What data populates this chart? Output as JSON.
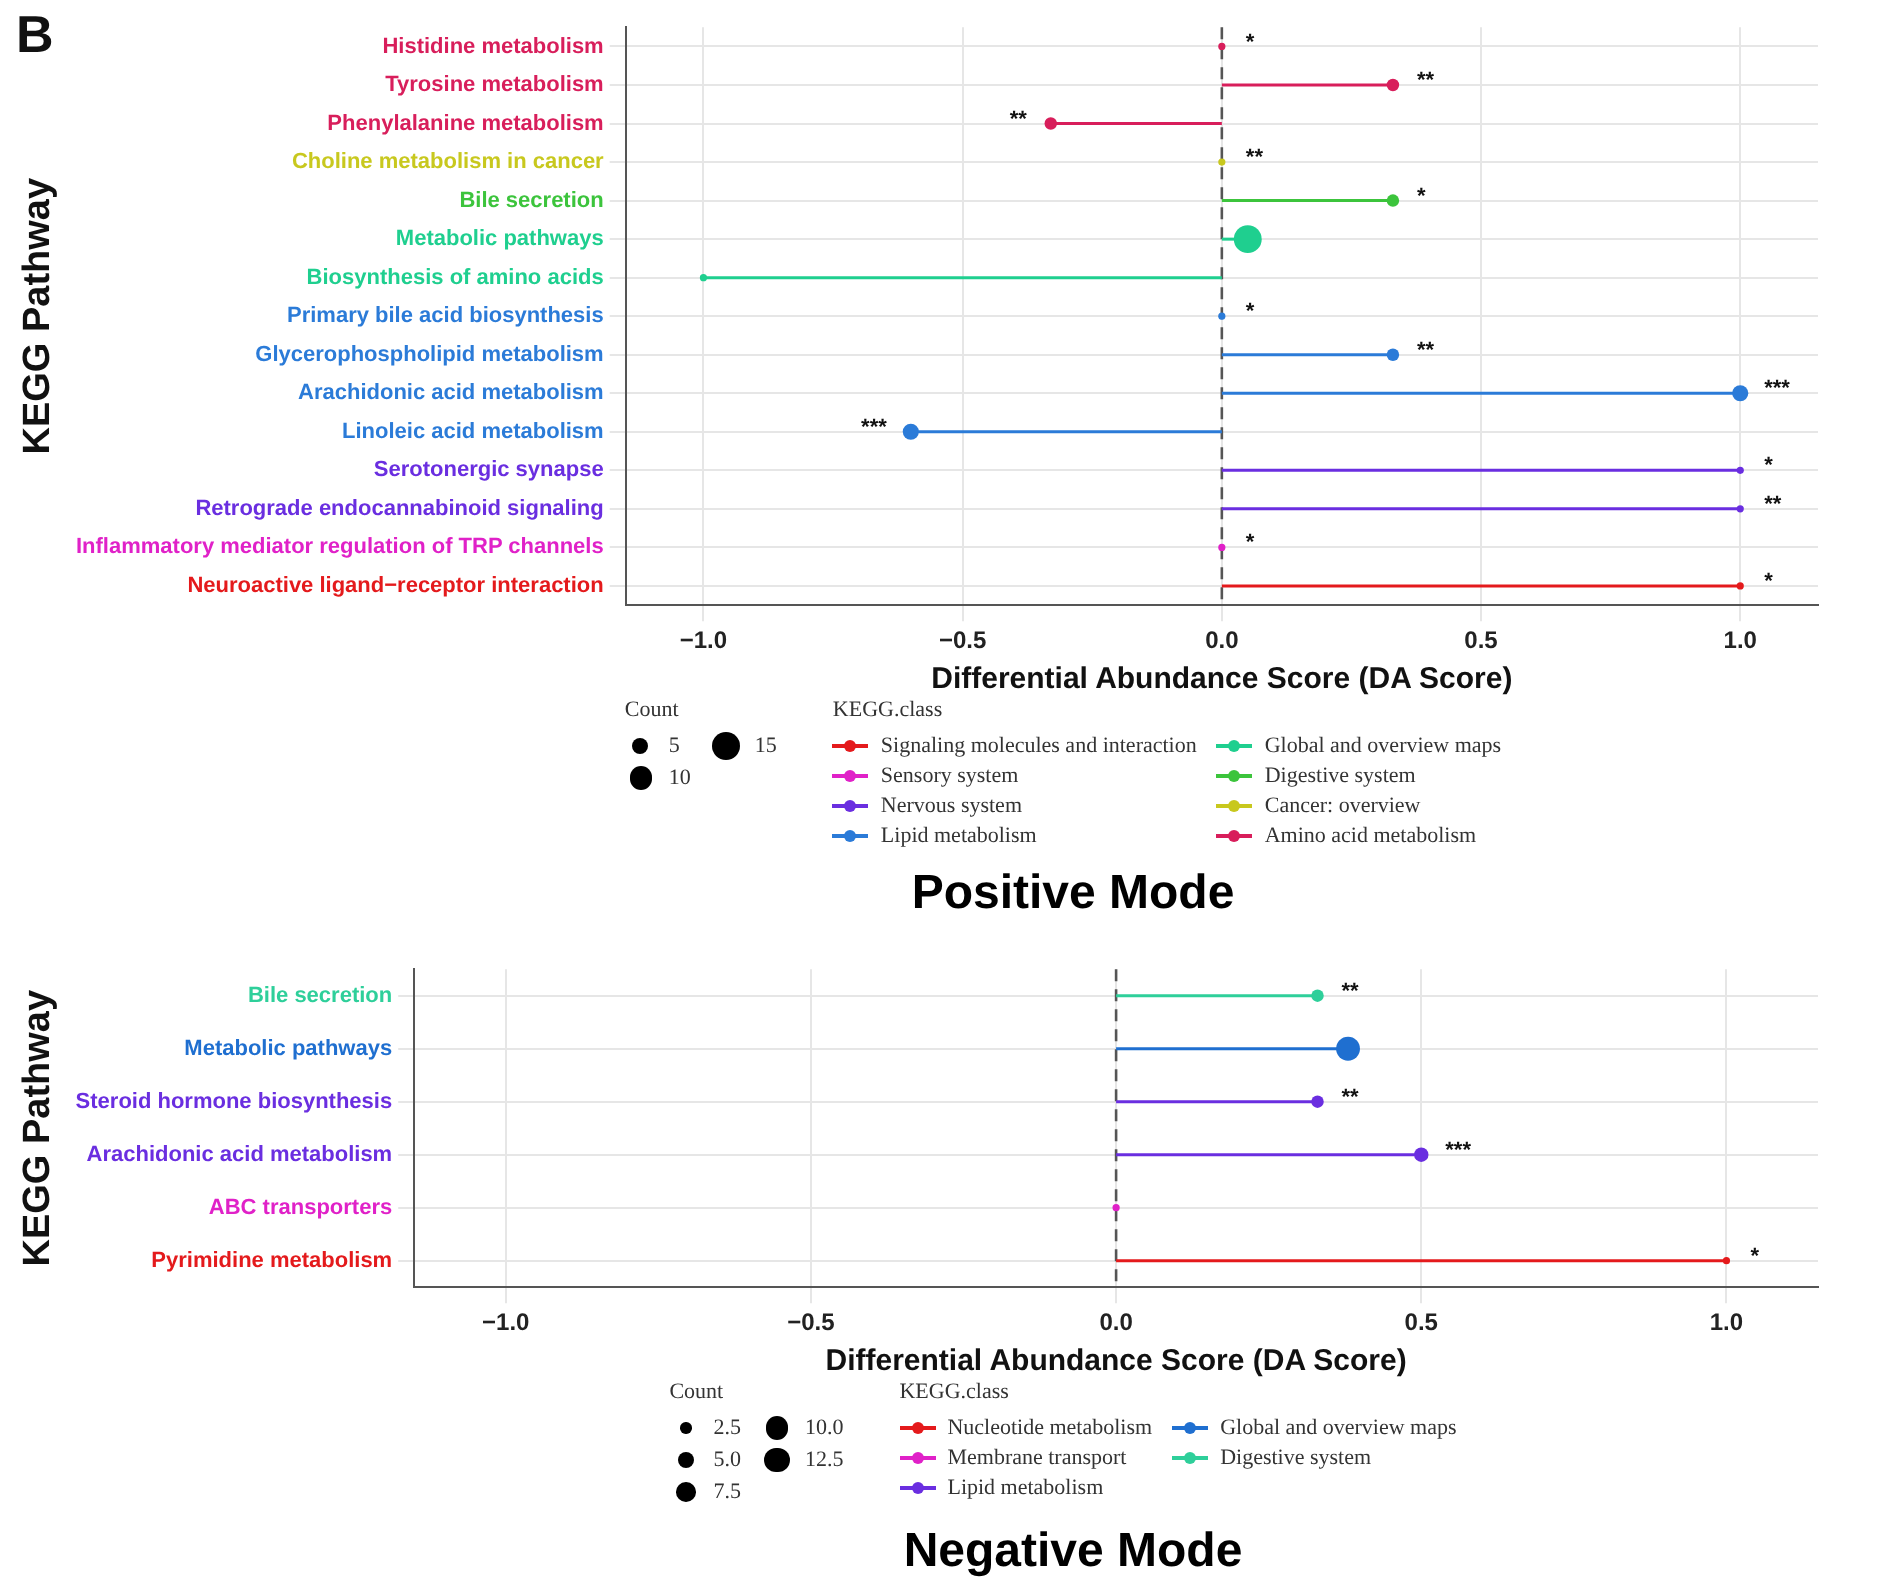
{
  "chart_data": [
    {
      "type": "lollipop",
      "title": "Positive Mode",
      "xlabel": "Differential Abundance Score (DA Score)",
      "ylabel": "KEGG Pathway",
      "legend_title": "KEGG.class",
      "categories": [
        "Histidine metabolism",
        "Tyrosine metabolism",
        "Phenylalanine metabolism",
        "Choline metabolism in cancer",
        "Bile secretion",
        "Metabolic pathways",
        "Biosynthesis of amino acids",
        "Primary bile acid biosynthesis",
        "Glycerophospholipid metabolism",
        "Arachidonic acid metabolism",
        "Linoleic acid metabolism",
        "Serotonergic synapse",
        "Retrograde endocannabinoid signaling",
        "Inflammatory mediator regulation of TRP channels",
        "Neuroactive ligand−receptor interaction"
      ],
      "series": [
        {
          "name": "Signaling molecules and interaction",
          "color": "#e41a1c",
          "values": [
            null,
            null,
            null,
            null,
            null,
            null,
            null,
            null,
            null,
            null,
            null,
            null,
            null,
            null,
            1.0
          ],
          "sizes": [
            null,
            null,
            null,
            null,
            null,
            null,
            null,
            null,
            null,
            null,
            null,
            null,
            null,
            null,
            1
          ]
        },
        {
          "name": "Sensory system",
          "color": "#e021c8",
          "values": [
            null,
            null,
            null,
            null,
            null,
            null,
            null,
            null,
            null,
            null,
            null,
            null,
            null,
            0,
            null
          ],
          "sizes": [
            null,
            null,
            null,
            null,
            null,
            null,
            null,
            null,
            null,
            null,
            null,
            null,
            null,
            1,
            null
          ]
        },
        {
          "name": "Nervous system",
          "color": "#6a2ee0",
          "values": [
            null,
            null,
            null,
            null,
            null,
            null,
            null,
            null,
            null,
            null,
            null,
            1.0,
            1.0,
            null,
            null
          ],
          "sizes": [
            null,
            null,
            null,
            null,
            null,
            null,
            null,
            null,
            null,
            null,
            null,
            1,
            1,
            null,
            null
          ]
        },
        {
          "name": "Lipid metabolism",
          "color": "#2b7bd8",
          "values": [
            null,
            null,
            null,
            null,
            null,
            null,
            null,
            0,
            0.33,
            1.0,
            -0.6,
            null,
            null,
            null,
            null
          ],
          "sizes": [
            null,
            null,
            null,
            null,
            null,
            null,
            null,
            1,
            3,
            5,
            5,
            null,
            null,
            null,
            null
          ]
        },
        {
          "name": "Global and overview maps",
          "color": "#1fcf8f",
          "values": [
            null,
            null,
            null,
            null,
            null,
            0.05,
            -1.0,
            null,
            null,
            null,
            null,
            null,
            null,
            null,
            null
          ],
          "sizes": [
            null,
            null,
            null,
            null,
            null,
            15,
            1,
            null,
            null,
            null,
            null,
            null,
            null,
            null,
            null
          ]
        },
        {
          "name": "Digestive system",
          "color": "#3cc43c",
          "values": [
            null,
            null,
            null,
            null,
            0.33,
            null,
            null,
            null,
            null,
            null,
            null,
            null,
            null,
            null,
            null
          ],
          "sizes": [
            null,
            null,
            null,
            null,
            3,
            null,
            null,
            null,
            null,
            null,
            null,
            null,
            null,
            null,
            null
          ]
        },
        {
          "name": "Cancer: overview",
          "color": "#c8c81e",
          "values": [
            null,
            null,
            null,
            0,
            null,
            null,
            null,
            null,
            null,
            null,
            null,
            null,
            null,
            null,
            null
          ],
          "sizes": [
            null,
            null,
            null,
            1,
            null,
            null,
            null,
            null,
            null,
            null,
            null,
            null,
            null,
            null,
            null
          ]
        },
        {
          "name": "Amino acid metabolism",
          "color": "#d81e5b",
          "values": [
            0,
            0.33,
            -0.33,
            null,
            null,
            null,
            null,
            null,
            null,
            null,
            null,
            null,
            null,
            null,
            null
          ],
          "sizes": [
            1,
            3,
            3,
            null,
            null,
            null,
            null,
            null,
            null,
            null,
            null,
            null,
            null,
            null,
            null
          ]
        }
      ],
      "size_legend": [
        {
          "value": 5,
          "label": "5"
        },
        {
          "value": 10,
          "label": "10"
        },
        {
          "value": 15,
          "label": "15"
        }
      ],
      "orientation": "horizontal",
      "xlim": [
        -1.15,
        1.15
      ],
      "xticks": [
        {
          "value": -1,
          "label": "−1.0"
        },
        {
          "value": -0.5,
          "label": "−0.5"
        },
        {
          "value": 0,
          "label": "0.0"
        },
        {
          "value": 0.5,
          "label": "0.5"
        },
        {
          "value": 1,
          "label": "1.0"
        }
      ],
      "grid": true,
      "legend": "bottom",
      "marker": "circle",
      "ref_lines": [
        {
          "axis": "x",
          "value": 0,
          "color": "#555555",
          "line_style": "dashed"
        }
      ],
      "annotations": [
        "B",
        "Count",
        {
          "text": "*",
          "x": 0,
          "y": "Histidine metabolism"
        },
        {
          "text": "**",
          "x": 0.33,
          "y": "Tyrosine metabolism"
        },
        {
          "text": "**",
          "x": -0.33,
          "y": "Phenylalanine metabolism"
        },
        {
          "text": "**",
          "x": 0,
          "y": "Choline metabolism in cancer"
        },
        {
          "text": "*",
          "x": 0.33,
          "y": "Bile secretion"
        },
        {
          "text": "*",
          "x": 0,
          "y": "Primary bile acid biosynthesis"
        },
        {
          "text": "**",
          "x": 0.33,
          "y": "Glycerophospholipid metabolism"
        },
        {
          "text": "***",
          "x": 1.0,
          "y": "Arachidonic acid metabolism"
        },
        {
          "text": "***",
          "x": -0.6,
          "y": "Linoleic acid metabolism"
        },
        {
          "text": "*",
          "x": 1.0,
          "y": "Serotonergic synapse"
        },
        {
          "text": "**",
          "x": 1.0,
          "y": "Retrograde endocannabinoid signaling"
        },
        {
          "text": "*",
          "x": 0,
          "y": "Inflammatory mediator regulation of TRP channels"
        },
        {
          "text": "*",
          "x": 1.0,
          "y": "Neuroactive ligand−receptor interaction"
        }
      ]
    },
    {
      "type": "lollipop",
      "title": "Negative Mode",
      "xlabel": "Differential Abundance Score (DA Score)",
      "ylabel": "KEGG Pathway",
      "legend_title": "KEGG.class",
      "categories": [
        "Bile secretion",
        "Metabolic pathways",
        "Steroid hormone biosynthesis",
        "Arachidonic acid metabolism",
        "ABC transporters",
        "Pyrimidine metabolism"
      ],
      "series": [
        {
          "name": "Nucleotide metabolism",
          "color": "#e41a1c",
          "values": [
            null,
            null,
            null,
            null,
            null,
            1.0
          ],
          "sizes": [
            null,
            null,
            null,
            null,
            null,
            1
          ]
        },
        {
          "name": "Membrane transport",
          "color": "#e021c8",
          "values": [
            null,
            null,
            null,
            null,
            0,
            null
          ],
          "sizes": [
            null,
            null,
            null,
            null,
            1,
            null
          ]
        },
        {
          "name": "Lipid metabolism",
          "color": "#6a2ee0",
          "values": [
            null,
            null,
            0.33,
            0.5,
            null,
            null
          ],
          "sizes": [
            null,
            null,
            3,
            4,
            null,
            null
          ]
        },
        {
          "name": "Global and overview maps",
          "color": "#1f6fd0",
          "values": [
            null,
            0.38,
            null,
            null,
            null,
            null
          ],
          "sizes": [
            null,
            11,
            null,
            null,
            null,
            null
          ]
        },
        {
          "name": "Digestive system",
          "color": "#2ecf9a",
          "values": [
            0.33,
            null,
            null,
            null,
            null,
            null
          ],
          "sizes": [
            3,
            null,
            null,
            null,
            null,
            null
          ]
        }
      ],
      "orientation": "horizontal",
      "size_legend": [
        {
          "value": 2.5,
          "label": "2.5"
        },
        {
          "value": 5,
          "label": "5.0"
        },
        {
          "value": 7.5,
          "label": "7.5"
        },
        {
          "value": 10,
          "label": "10.0"
        },
        {
          "value": 12.5,
          "label": "12.5"
        }
      ],
      "xlim": [
        -1.15,
        1.15
      ],
      "xticks": [
        {
          "value": -1,
          "label": "−1.0"
        },
        {
          "value": -0.5,
          "label": "−0.5"
        },
        {
          "value": 0,
          "label": "0.0"
        },
        {
          "value": 0.5,
          "label": "0.5"
        },
        {
          "value": 1,
          "label": "1.0"
        }
      ],
      "grid": true,
      "legend": "bottom",
      "marker": "circle",
      "ref_lines": [
        {
          "axis": "x",
          "value": 0,
          "color": "#555555",
          "line_style": "dashed"
        }
      ],
      "annotations": [
        "Count",
        {
          "text": "**",
          "x": 0.33,
          "y": "Bile secretion"
        },
        {
          "text": "**",
          "x": 0.33,
          "y": "Steroid hormone biosynthesis"
        },
        {
          "text": "***",
          "x": 0.5,
          "y": "Arachidonic acid metabolism"
        },
        {
          "text": "*",
          "x": 1.0,
          "y": "Pyrimidine metabolism"
        }
      ]
    }
  ]
}
